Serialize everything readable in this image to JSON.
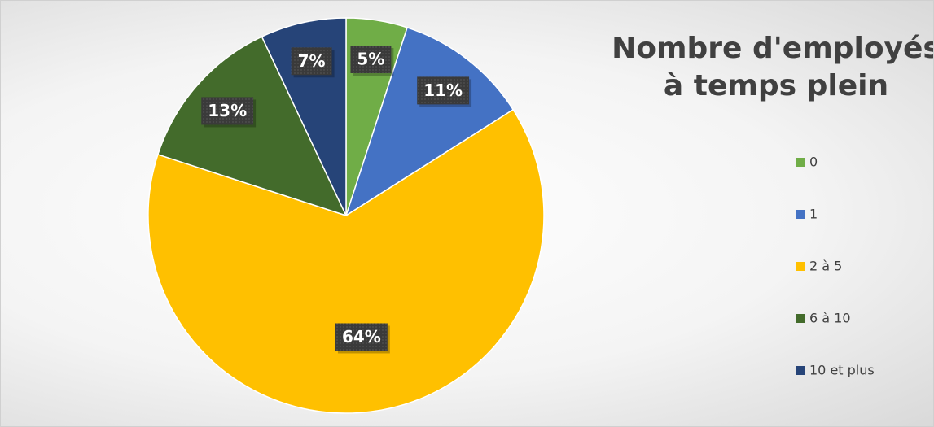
{
  "chart_data": {
    "type": "pie",
    "title": "Nombre d'employés à temps plein",
    "categories": [
      "0",
      "1",
      "2 à 5",
      "6 à 10",
      "10 et plus"
    ],
    "values": [
      5,
      11,
      64,
      13,
      7
    ],
    "value_labels": [
      "5%",
      "11%",
      "64%",
      "13%",
      "7%"
    ],
    "colors": [
      "#70ad47",
      "#4472c4",
      "#ffc000",
      "#436b2b",
      "#264478"
    ],
    "legend": "right"
  }
}
